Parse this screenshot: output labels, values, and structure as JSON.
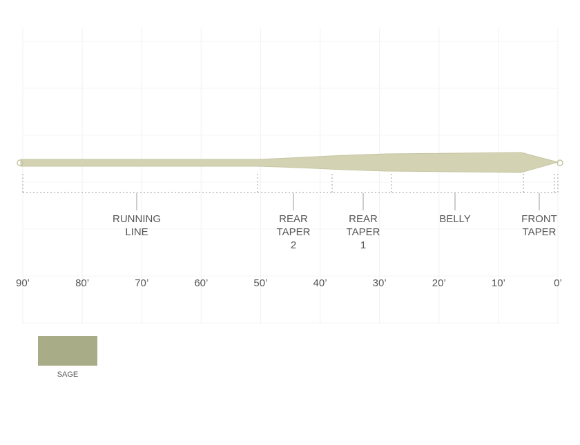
{
  "sections": [
    {
      "lines": [
        "RUNNING",
        "LINE"
      ]
    },
    {
      "lines": [
        "REAR",
        "TAPER",
        "2"
      ]
    },
    {
      "lines": [
        "REAR",
        "TAPER",
        "1"
      ]
    },
    {
      "lines": [
        "BELLY"
      ]
    },
    {
      "lines": [
        "FRONT",
        "TAPER"
      ]
    }
  ],
  "scale": [
    "90’",
    "80’",
    "70’",
    "60’",
    "50’",
    "40’",
    "30’",
    "20’",
    "10’",
    "0’"
  ],
  "swatch": {
    "label": "SAGE"
  }
}
